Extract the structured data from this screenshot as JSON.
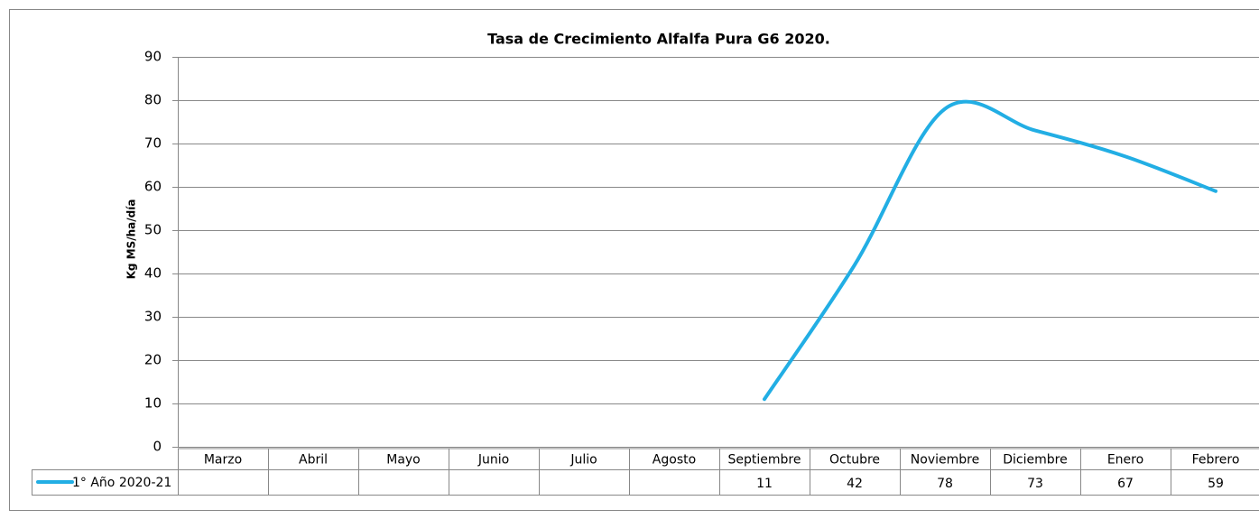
{
  "chart_data": {
    "type": "line",
    "title": "Tasa de Crecimiento Alfalfa Pura G6 2020.",
    "y_label": "Kg MS/ha/día",
    "categories": [
      "Marzo",
      "Abril",
      "Mayo",
      "Junio",
      "Julio",
      "Agosto",
      "Septiembre",
      "Octubre",
      "Noviembre",
      "Diciembre",
      "Enero",
      "Febrero"
    ],
    "series": [
      {
        "name": "1° Año 2020-21",
        "color": "#22aee4",
        "values": [
          null,
          null,
          null,
          null,
          null,
          null,
          11,
          42,
          78,
          73,
          67,
          59
        ]
      }
    ],
    "ylim": [
      0,
      90
    ],
    "yticks": [
      0,
      10,
      20,
      30,
      40,
      50,
      60,
      70,
      80,
      90
    ],
    "grid": true,
    "smooth": true,
    "data_table": true
  }
}
